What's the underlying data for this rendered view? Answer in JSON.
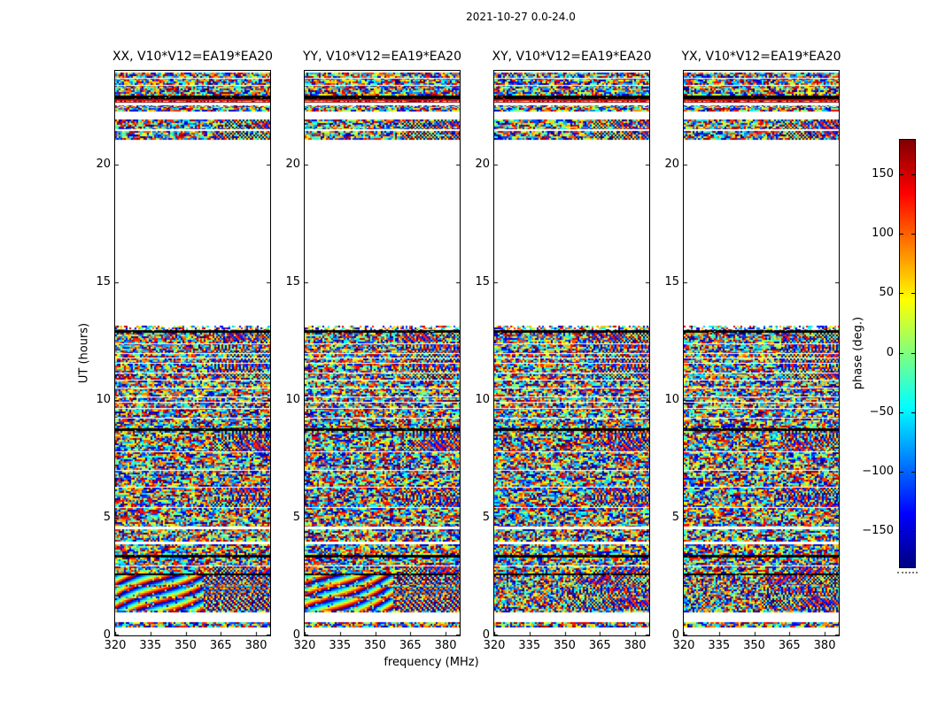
{
  "chart_data": {
    "type": "heatmap",
    "title": "2021-10-27 0.0-24.0",
    "panels": [
      {
        "title": "XX, V10*V12=EA19*EA20",
        "pol": "XX",
        "baseline": "V10*V12",
        "antennas": "EA19*EA20",
        "fringe_style": "smooth",
        "seed": 790
      },
      {
        "title": "YY, V10*V12=EA19*EA20",
        "pol": "YY",
        "baseline": "V10*V12",
        "antennas": "EA19*EA20",
        "fringe_style": "smooth",
        "seed": 1567
      },
      {
        "title": "XY, V10*V12=EA19*EA20",
        "pol": "XY",
        "baseline": "V10*V12",
        "antennas": "EA19*EA20",
        "fringe_style": "noise",
        "seed": 2344
      },
      {
        "title": "YX, V10*V12=EA19*EA20",
        "pol": "YX",
        "baseline": "V10*V12",
        "antennas": "EA19*EA20",
        "fringe_style": "noise",
        "seed": 3121
      }
    ],
    "x_axis": {
      "label": "frequency (MHz)",
      "ticks": [
        "320",
        "335",
        "350",
        "365",
        "380"
      ],
      "tick_values": [
        320,
        335,
        350,
        365,
        380
      ],
      "range": [
        320,
        386
      ]
    },
    "y_axis": {
      "label": "UT (hours)",
      "ticks": [
        "0",
        "5",
        "10",
        "15",
        "20"
      ],
      "tick_values": [
        0,
        5,
        10,
        15,
        20
      ],
      "range": [
        0,
        24
      ]
    },
    "colorbar": {
      "label": "phase (deg.)",
      "ticks": [
        "150",
        "100",
        "50",
        "0",
        "−50",
        "−100",
        "−150"
      ],
      "tick_values": [
        150,
        100,
        50,
        0,
        -50,
        -100,
        -150
      ],
      "range": [
        -180,
        180
      ],
      "colormap": "jet",
      "stops": [
        {
          "pos": 0.0,
          "color": "#000080"
        },
        {
          "pos": 0.125,
          "color": "#0000ff"
        },
        {
          "pos": 0.375,
          "color": "#00ffff"
        },
        {
          "pos": 0.625,
          "color": "#ffff00"
        },
        {
          "pos": 0.875,
          "color": "#ff0000"
        },
        {
          "pos": 1.0,
          "color": "#800000"
        }
      ]
    },
    "time_bands": [
      {
        "from": 23.93,
        "to": 22.95,
        "kind": "noise"
      },
      {
        "from": 22.95,
        "to": 22.8,
        "kind": "black"
      },
      {
        "from": 22.8,
        "to": 22.42,
        "kind": "rows"
      },
      {
        "from": 22.42,
        "to": 22.26,
        "kind": "noise"
      },
      {
        "from": 22.26,
        "to": 21.93,
        "kind": "white"
      },
      {
        "from": 21.93,
        "to": 21.5,
        "kind": "noise",
        "wavy": true
      },
      {
        "from": 21.5,
        "to": 21.46,
        "kind": "white"
      },
      {
        "from": 21.46,
        "to": 21.06,
        "kind": "noise",
        "wavy": true
      },
      {
        "from": 21.06,
        "to": 13.18,
        "kind": "white"
      },
      {
        "from": 13.18,
        "to": 12.97,
        "kind": "noise",
        "sparse": true
      },
      {
        "from": 12.97,
        "to": 12.86,
        "kind": "black"
      },
      {
        "from": 12.86,
        "to": 11.82,
        "kind": "noise",
        "wavy": true
      },
      {
        "from": 11.82,
        "to": 11.78,
        "kind": "white"
      },
      {
        "from": 11.78,
        "to": 10.88,
        "kind": "noise",
        "wavy": true
      },
      {
        "from": 10.88,
        "to": 10.84,
        "kind": "white"
      },
      {
        "from": 10.84,
        "to": 9.92,
        "kind": "noise"
      },
      {
        "from": 9.92,
        "to": 9.88,
        "kind": "white"
      },
      {
        "from": 9.88,
        "to": 8.82,
        "kind": "noise"
      },
      {
        "from": 8.82,
        "to": 8.7,
        "kind": "black"
      },
      {
        "from": 8.7,
        "to": 7.82,
        "kind": "noise",
        "wavy": true
      },
      {
        "from": 7.82,
        "to": 7.78,
        "kind": "white"
      },
      {
        "from": 7.78,
        "to": 7.02,
        "kind": "noise"
      },
      {
        "from": 7.02,
        "to": 6.98,
        "kind": "white"
      },
      {
        "from": 6.98,
        "to": 6.32,
        "kind": "noise"
      },
      {
        "from": 6.32,
        "to": 6.28,
        "kind": "white"
      },
      {
        "from": 6.28,
        "to": 5.47,
        "kind": "noise",
        "wavy": true
      },
      {
        "from": 5.47,
        "to": 5.43,
        "kind": "white"
      },
      {
        "from": 5.43,
        "to": 4.62,
        "kind": "noise"
      },
      {
        "from": 4.62,
        "to": 4.52,
        "kind": "white"
      },
      {
        "from": 4.52,
        "to": 3.97,
        "kind": "noise"
      },
      {
        "from": 3.97,
        "to": 3.87,
        "kind": "white"
      },
      {
        "from": 3.87,
        "to": 3.42,
        "kind": "noise"
      },
      {
        "from": 3.42,
        "to": 3.32,
        "kind": "black"
      },
      {
        "from": 3.32,
        "to": 2.97,
        "kind": "noise"
      },
      {
        "from": 2.97,
        "to": 2.92,
        "kind": "white"
      },
      {
        "from": 2.92,
        "to": 2.62,
        "kind": "noise",
        "wavy": true
      },
      {
        "from": 2.62,
        "to": 2.56,
        "kind": "black"
      },
      {
        "from": 2.56,
        "to": 1.06,
        "kind": "fringe"
      },
      {
        "from": 1.06,
        "to": 0.96,
        "kind": "noise"
      },
      {
        "from": 0.96,
        "to": 0.56,
        "kind": "white"
      },
      {
        "from": 0.56,
        "to": 0.32,
        "kind": "noise"
      },
      {
        "from": 0.32,
        "to": 0.0,
        "kind": "white"
      }
    ]
  }
}
